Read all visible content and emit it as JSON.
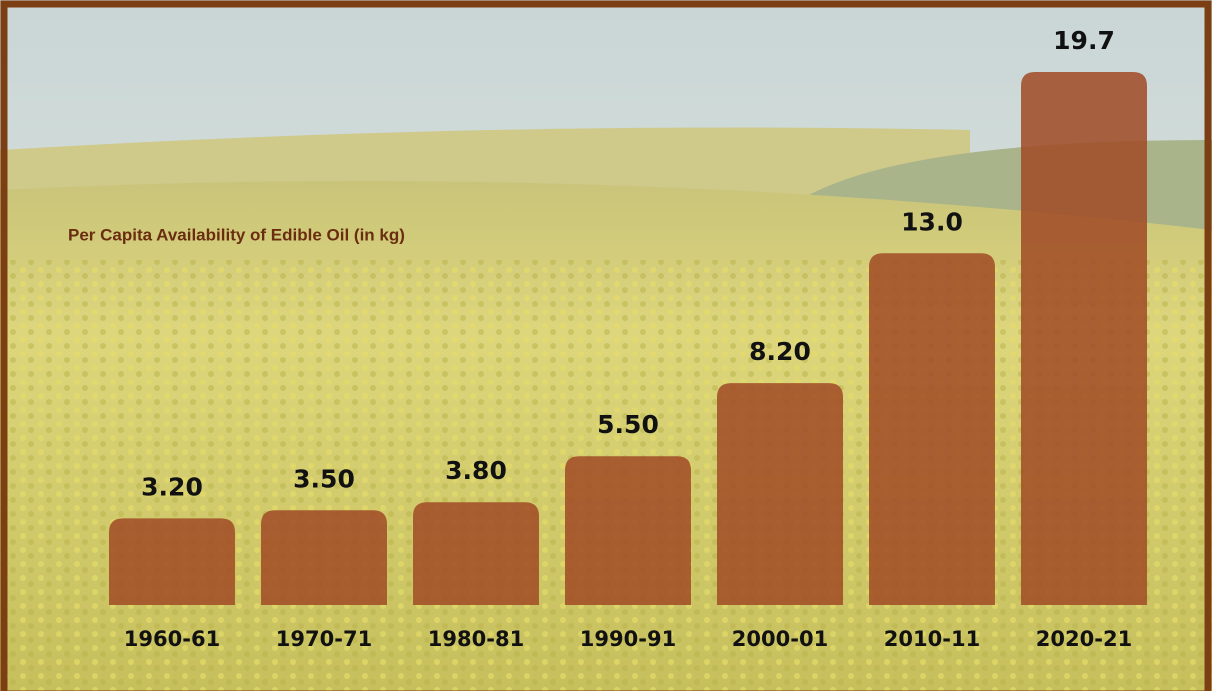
{
  "chart_data": {
    "type": "bar",
    "title": "Per Capita Availability of Edible Oil (in kg)",
    "categories": [
      "1960-61",
      "1970-71",
      "1980-81",
      "1990-91",
      "2000-01",
      "2010-11",
      "2020-21"
    ],
    "values": [
      3.2,
      3.5,
      3.8,
      5.5,
      8.2,
      13,
      19.7
    ],
    "value_labels": [
      "3.20",
      "3.50",
      "3.80",
      "5.50",
      "8.20",
      "13.0",
      "19.7"
    ],
    "color": "#a04a24"
  }
}
